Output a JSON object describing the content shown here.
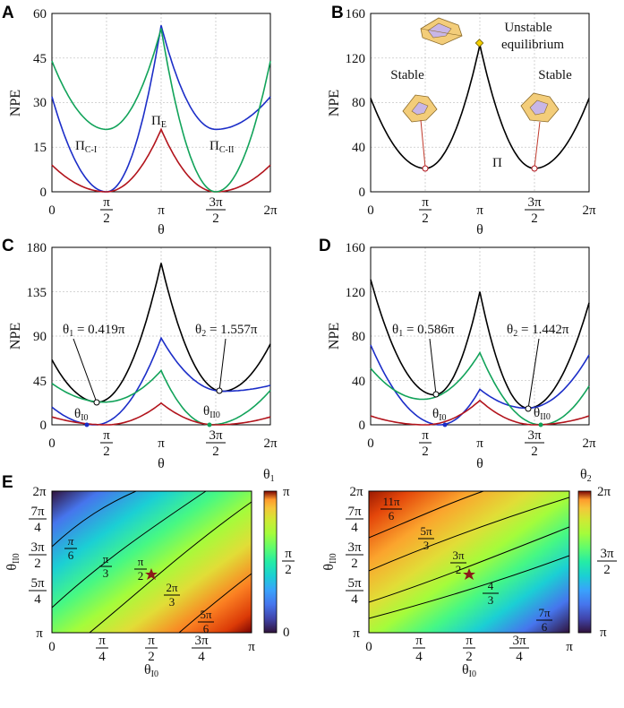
{
  "colors": {
    "red": "#b2141c",
    "blue": "#1c2ec8",
    "green": "#12a35a",
    "black": "#000000",
    "star": "#8b1a1a"
  },
  "chart_data": [
    {
      "panel": "A",
      "type": "line",
      "xlabel": "θ",
      "ylabel": "NPE",
      "xlim": [
        0,
        6.2832
      ],
      "ylim": [
        0,
        60
      ],
      "xticks": [
        "0",
        "π/2",
        "π",
        "3π/2",
        "2π"
      ],
      "yticks": [
        "0",
        "15",
        "30",
        "45",
        "60"
      ],
      "series": [
        {
          "name": "Π_C-I",
          "color": "#1c2ec8",
          "keypoints": {
            "x": [
              0,
              1.571,
              3.1416,
              4.712,
              6.2832
            ],
            "y": [
              32,
              0,
              56,
              21,
              32
            ]
          }
        },
        {
          "name": "Π_E",
          "color": "#b2141c",
          "keypoints": {
            "x": [
              0,
              1.571,
              3.1416,
              4.712,
              6.2832
            ],
            "y": [
              9,
              0,
              21,
              0,
              9
            ]
          }
        },
        {
          "name": "Π_C-II",
          "color": "#12a35a",
          "keypoints": {
            "x": [
              0,
              1.571,
              3.1416,
              4.712,
              6.2832
            ],
            "y": [
              44,
              21,
              55,
              0,
              44
            ]
          }
        }
      ],
      "annotations": [
        "Π_C-I",
        "Π_E",
        "Π_C-II"
      ]
    },
    {
      "panel": "B",
      "type": "line",
      "xlabel": "θ",
      "ylabel": "NPE",
      "xlim": [
        0,
        6.2832
      ],
      "ylim": [
        0,
        160
      ],
      "xticks": [
        "0",
        "π/2",
        "π",
        "3π/2",
        "2π"
      ],
      "yticks": [
        "0",
        "40",
        "80",
        "120",
        "160"
      ],
      "series": [
        {
          "name": "Π",
          "color": "#000000",
          "keypoints": {
            "x": [
              0,
              1.571,
              3.1416,
              4.712,
              6.2832
            ],
            "y": [
              84,
              21,
              132,
              21,
              84
            ]
          }
        }
      ],
      "annotations": [
        "Unstable",
        "equilibrium",
        "Stable",
        "Stable",
        "Π"
      ]
    },
    {
      "panel": "C",
      "type": "line",
      "xlabel": "θ",
      "ylabel": "NPE",
      "xlim": [
        0,
        6.2832
      ],
      "ylim": [
        0,
        180
      ],
      "xticks": [
        "0",
        "π/2",
        "π",
        "3π/2",
        "2π"
      ],
      "yticks": [
        "0",
        "45",
        "90",
        "135",
        "180"
      ],
      "series": [
        {
          "name": "total",
          "color": "#000000",
          "keypoints": {
            "x": [
              0,
              1.316,
              3.1416,
              4.892,
              6.2832
            ],
            "y": [
              66,
              23,
              164,
              34,
              82
            ]
          }
        },
        {
          "name": "blue",
          "color": "#1c2ec8",
          "keypoints": {
            "x": [
              0,
              1.25,
              3.1416,
              4.9,
              6.2832
            ],
            "y": [
              18,
              0,
              88,
              34,
              40
            ]
          }
        },
        {
          "name": "green",
          "color": "#12a35a",
          "keypoints": {
            "x": [
              0,
              1.5,
              3.1416,
              4.55,
              6.2832
            ],
            "y": [
              42,
              23,
              55,
              0,
              35
            ]
          }
        },
        {
          "name": "red",
          "color": "#b2141c",
          "keypoints": {
            "x": [
              0,
              1.571,
              3.1416,
              4.712,
              6.2832
            ],
            "y": [
              8,
              0,
              22,
              0,
              8
            ]
          }
        }
      ],
      "annotations": [
        "θ₁ = 0.419π",
        "θ₂ = 1.557π",
        "θ_I0",
        "θ_II0"
      ]
    },
    {
      "panel": "D",
      "type": "line",
      "xlabel": "θ",
      "ylabel": "NPE",
      "xlim": [
        0,
        6.2832
      ],
      "ylim": [
        0,
        160
      ],
      "xticks": [
        "0",
        "π/2",
        "π",
        "3π/2",
        "2π"
      ],
      "yticks": [
        "0",
        "40",
        "80",
        "120",
        "160"
      ],
      "series": [
        {
          "name": "total",
          "color": "#000000",
          "keypoints": {
            "x": [
              0,
              1.84,
              3.1416,
              4.53,
              6.2832
            ],
            "y": [
              131,
              27,
              120,
              15,
              110
            ]
          }
        },
        {
          "name": "blue",
          "color": "#1c2ec8",
          "keypoints": {
            "x": [
              0,
              2.0,
              3.1416,
              4.5,
              6.2832
            ],
            "y": [
              72,
              0,
              32,
              15,
              63
            ]
          }
        },
        {
          "name": "green",
          "color": "#12a35a",
          "keypoints": {
            "x": [
              0,
              1.5,
              3.1416,
              4.9,
              6.2832
            ],
            "y": [
              51,
              23,
              65,
              0,
              35
            ]
          }
        },
        {
          "name": "red",
          "color": "#b2141c",
          "keypoints": {
            "x": [
              0,
              1.571,
              3.1416,
              4.712,
              6.2832
            ],
            "y": [
              8,
              0,
              22,
              0,
              8
            ]
          }
        }
      ],
      "annotations": [
        "θ₁ = 0.586π",
        "θ₂ = 1.442π",
        "θ_I0",
        "θ_II0"
      ]
    },
    {
      "panel": "E-left",
      "type": "heatmap",
      "xlabel": "θ_I0",
      "ylabel": "θ_II0",
      "xlim": [
        0,
        3.1416
      ],
      "ylim": [
        3.1416,
        6.2832
      ],
      "xticks": [
        "0",
        "π/4",
        "π/2",
        "3π/4",
        "π"
      ],
      "yticks": [
        "π",
        "5π/4",
        "3π/2",
        "7π/4",
        "2π"
      ],
      "colorbar": {
        "label": "θ₁",
        "range": [
          0,
          3.1416
        ],
        "ticks": [
          "0",
          "π/2",
          "π"
        ]
      },
      "contours": [
        "π/6",
        "π/3",
        "π/2",
        "2π/3",
        "5π/6"
      ],
      "marker": {
        "x": 1.5708,
        "y": 4.7124
      }
    },
    {
      "panel": "E-right",
      "type": "heatmap",
      "xlabel": "θ_I0",
      "ylabel": "θ_II0",
      "xlim": [
        0,
        3.1416
      ],
      "ylim": [
        3.1416,
        6.2832
      ],
      "xticks": [
        "0",
        "π/4",
        "π/2",
        "3π/4",
        "π"
      ],
      "yticks": [
        "π",
        "5π/4",
        "3π/2",
        "7π/4",
        "2π"
      ],
      "colorbar": {
        "label": "θ₂",
        "range": [
          3.1416,
          6.2832
        ],
        "ticks": [
          "π",
          "3π/2",
          "2π"
        ]
      },
      "contours": [
        "11π/6",
        "5π/3",
        "3π/2",
        "4π/3",
        "7π/6"
      ],
      "marker": {
        "x": 1.5708,
        "y": 4.7124
      }
    }
  ],
  "labels": {
    "panelA": "A",
    "panelB": "B",
    "panelC": "C",
    "panelD": "D",
    "panelE": "E",
    "npe": "NPE",
    "theta": "θ",
    "pi": "π",
    "two": "2",
    "twoPi": "2π",
    "threePi": "3π",
    "zero": "0",
    "fourth": "4",
    "fivePi": "5π",
    "sevenPi": "7π",
    "sixth": "6",
    "elevenPi": "11π",
    "third": "3",
    "A": {
      "y0": "0",
      "y1": "15",
      "y2": "30",
      "y3": "45",
      "y4": "60",
      "pi_c1_base": "Π",
      "pi_c1_sub": "C-I",
      "pi_e_base": "Π",
      "pi_e_sub": "E",
      "pi_c2_base": "Π",
      "pi_c2_sub": "C-II"
    },
    "B": {
      "y0": "0",
      "y1": "40",
      "y2": "80",
      "y3": "120",
      "y4": "160",
      "unstable": "Unstable",
      "equilibrium": "equilibrium",
      "stable1": "Stable",
      "stable2": "Stable",
      "pi": "Π"
    },
    "C": {
      "y0": "0",
      "y1": "45",
      "y2": "90",
      "y3": "135",
      "y4": "180",
      "t1_base": "θ",
      "t1_sub": "1",
      "t1_val": " = 0.419π",
      "t2_base": "θ",
      "t2_sub": "2",
      "t2_val": " = 1.557π",
      "ti0_base": "θ",
      "ti0_sub": "I0",
      "tii0_base": "θ",
      "tii0_sub": "II0"
    },
    "D": {
      "y0": "0",
      "y1": "40",
      "y2": "80",
      "y3": "120",
      "y4": "160",
      "t1_base": "θ",
      "t1_sub": "1",
      "t1_val": " = 0.586π",
      "t2_base": "θ",
      "t2_sub": "2",
      "t2_val": " = 1.442π",
      "ti0_base": "θ",
      "ti0_sub": "I0",
      "tii0_base": "θ",
      "tii0_sub": "II0"
    },
    "E": {
      "xlab_base": "θ",
      "xlab_sub": "I0",
      "ylab_base": "θ",
      "ylab_sub": "II0",
      "cb1_base": "θ",
      "cb1_sub": "1",
      "cb2_base": "θ",
      "cb2_sub": "2"
    }
  }
}
